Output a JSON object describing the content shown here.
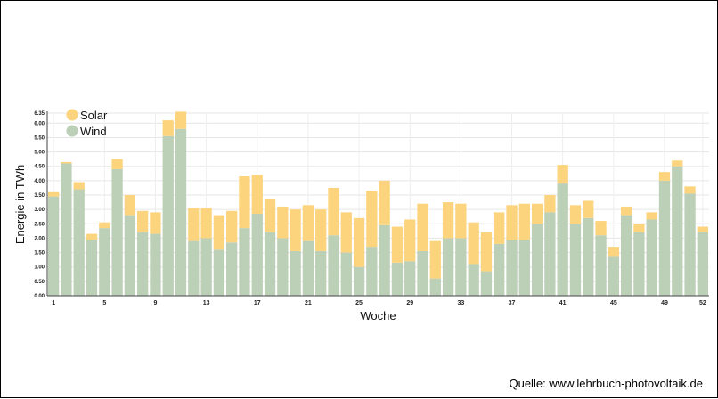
{
  "source_note": "Quelle: www.lehrbuch-photovoltaik.de",
  "chart_data": {
    "type": "bar",
    "stacked": true,
    "xlabel": "Woche",
    "ylabel": "Energie in TWh",
    "ylim": [
      0,
      6.35
    ],
    "yticks": [
      "0.00",
      "0.50",
      "1.00",
      "1.50",
      "2.00",
      "2.50",
      "3.00",
      "3.50",
      "4.00",
      "4.50",
      "5.00",
      "5.50",
      "6.00",
      "6.35"
    ],
    "ytick_values": [
      0,
      0.5,
      1,
      1.5,
      2,
      2.5,
      3,
      3.5,
      4,
      4.5,
      5,
      5.5,
      6,
      6.35
    ],
    "xtick_labels": [
      "1",
      "5",
      "9",
      "13",
      "17",
      "21",
      "25",
      "29",
      "33",
      "37",
      "41",
      "45",
      "49",
      "52"
    ],
    "x": [
      1,
      2,
      3,
      4,
      5,
      6,
      7,
      8,
      9,
      10,
      11,
      12,
      13,
      14,
      15,
      16,
      17,
      18,
      19,
      20,
      21,
      22,
      23,
      24,
      25,
      26,
      27,
      28,
      29,
      30,
      31,
      32,
      33,
      34,
      35,
      36,
      37,
      38,
      39,
      40,
      41,
      42,
      43,
      44,
      45,
      46,
      47,
      48,
      49,
      50,
      51,
      52
    ],
    "grid": true,
    "legend_position": "top-left",
    "series": [
      {
        "name": "Wind",
        "color": "#bccfb7",
        "values": [
          3.45,
          4.6,
          3.7,
          1.95,
          2.35,
          4.4,
          2.8,
          2.2,
          2.15,
          5.55,
          5.8,
          1.9,
          2.0,
          1.6,
          1.85,
          2.35,
          2.85,
          2.2,
          2.0,
          1.55,
          1.9,
          1.55,
          2.1,
          1.5,
          1.0,
          1.7,
          2.45,
          1.15,
          1.2,
          1.55,
          0.6,
          2.0,
          2.0,
          1.1,
          0.85,
          1.8,
          1.95,
          1.95,
          2.5,
          2.9,
          3.9,
          2.5,
          2.7,
          2.1,
          1.35,
          2.8,
          2.2,
          2.65,
          4.0,
          4.5,
          3.55,
          2.2
        ]
      },
      {
        "name": "Solar",
        "color": "#fcd47e",
        "values": [
          0.15,
          0.05,
          0.25,
          0.2,
          0.2,
          0.35,
          0.7,
          0.75,
          0.75,
          0.55,
          0.6,
          1.15,
          1.05,
          1.2,
          1.1,
          1.8,
          1.35,
          1.15,
          1.1,
          1.45,
          1.25,
          1.45,
          1.65,
          1.4,
          1.7,
          1.95,
          1.55,
          1.25,
          1.45,
          1.65,
          1.3,
          1.25,
          1.2,
          1.45,
          1.35,
          1.1,
          1.2,
          1.25,
          0.7,
          0.6,
          0.65,
          0.65,
          0.6,
          0.5,
          0.35,
          0.3,
          0.3,
          0.25,
          0.3,
          0.2,
          0.25,
          0.2
        ]
      }
    ]
  }
}
